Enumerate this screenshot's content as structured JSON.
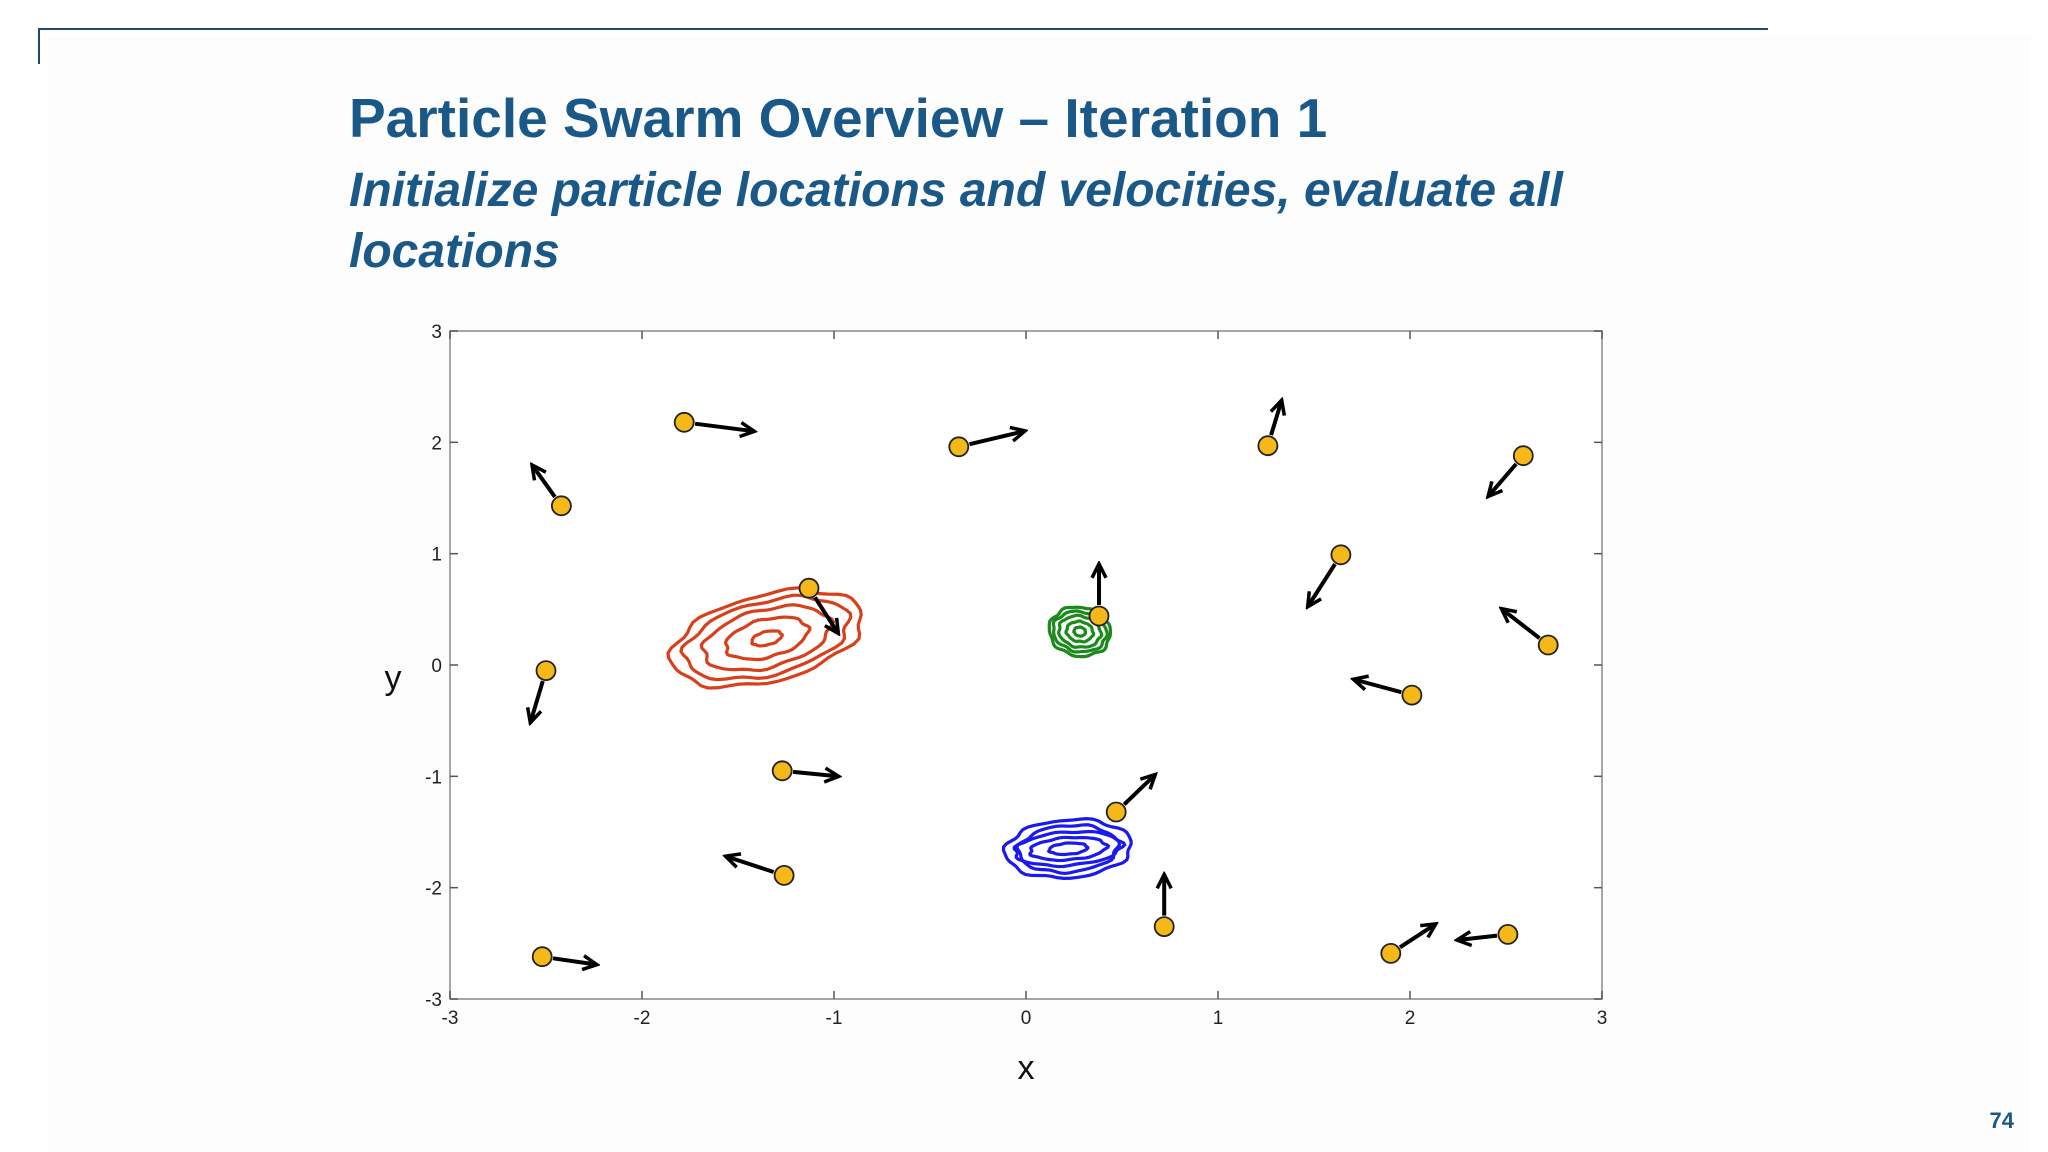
{
  "slide": {
    "title": "Particle Swarm Overview – Iteration 1",
    "subtitle": "Initialize particle locations and velocities, evaluate all locations",
    "page_number": "74"
  },
  "chart_data": {
    "type": "scatter",
    "xlabel": "x",
    "ylabel": "y",
    "xlim": [
      -3,
      3
    ],
    "ylim": [
      -3,
      3
    ],
    "x_ticks": [
      "-3",
      "-2",
      "-1",
      "0",
      "1",
      "2",
      "3"
    ],
    "y_ticks": [
      "3",
      "2",
      "1",
      "0",
      "-1",
      "-2",
      "-3"
    ],
    "grid": false,
    "colors": {
      "particle_fill": "#f5b819",
      "particle_edge": "#222222",
      "velocity_arrow": "#000000",
      "contour_red": "#d8401b",
      "contour_green": "#1a8a1a",
      "contour_blue": "#1a1aee"
    },
    "particles": [
      {
        "x": -1.78,
        "y": 2.18,
        "vx": 0.36,
        "vy": -0.08
      },
      {
        "x": -0.35,
        "y": 1.96,
        "vx": 0.34,
        "vy": 0.14
      },
      {
        "x": 1.26,
        "y": 1.97,
        "vx": 0.07,
        "vy": 0.4
      },
      {
        "x": 2.59,
        "y": 1.88,
        "vx": -0.18,
        "vy": -0.36
      },
      {
        "x": -2.42,
        "y": 1.43,
        "vx": -0.15,
        "vy": 0.36
      },
      {
        "x": 1.64,
        "y": 0.99,
        "vx": -0.17,
        "vy": -0.46
      },
      {
        "x": -1.13,
        "y": 0.69,
        "vx": 0.15,
        "vy": -0.4
      },
      {
        "x": 0.38,
        "y": 0.44,
        "vx": 0.0,
        "vy": 0.46
      },
      {
        "x": 2.72,
        "y": 0.18,
        "vx": -0.24,
        "vy": 0.32
      },
      {
        "x": -2.5,
        "y": -0.05,
        "vx": -0.08,
        "vy": -0.46
      },
      {
        "x": 2.01,
        "y": -0.27,
        "vx": -0.3,
        "vy": 0.14
      },
      {
        "x": -1.27,
        "y": -0.95,
        "vx": 0.29,
        "vy": -0.05
      },
      {
        "x": 0.47,
        "y": -1.32,
        "vx": 0.2,
        "vy": 0.33
      },
      {
        "x": -1.26,
        "y": -1.89,
        "vx": -0.3,
        "vy": 0.17
      },
      {
        "x": 0.72,
        "y": -2.35,
        "vx": 0.0,
        "vy": 0.46
      },
      {
        "x": -2.52,
        "y": -2.62,
        "vx": 0.28,
        "vy": -0.07
      },
      {
        "x": 1.9,
        "y": -2.59,
        "vx": 0.23,
        "vy": 0.26
      },
      {
        "x": 2.51,
        "y": -2.42,
        "vx": -0.26,
        "vy": -0.05
      }
    ],
    "contours": [
      {
        "color": "red",
        "cx": -1.35,
        "cy": 0.24,
        "rx": [
          0.08,
          0.22,
          0.34,
          0.44,
          0.51
        ],
        "ry": [
          0.06,
          0.17,
          0.26,
          0.33,
          0.39
        ],
        "rotate": -14
      },
      {
        "color": "green",
        "cx": 0.28,
        "cy": 0.3,
        "rx": [
          0.03,
          0.07,
          0.11,
          0.14,
          0.16
        ],
        "ry": [
          0.04,
          0.09,
          0.14,
          0.18,
          0.22
        ],
        "rotate": 10
      },
      {
        "color": "blue",
        "cx": 0.22,
        "cy": -1.65,
        "rx": [
          0.1,
          0.2,
          0.28,
          0.26,
          0.33
        ],
        "ry": [
          0.05,
          0.1,
          0.15,
          0.21,
          0.26
        ],
        "rotate": -4
      }
    ]
  }
}
